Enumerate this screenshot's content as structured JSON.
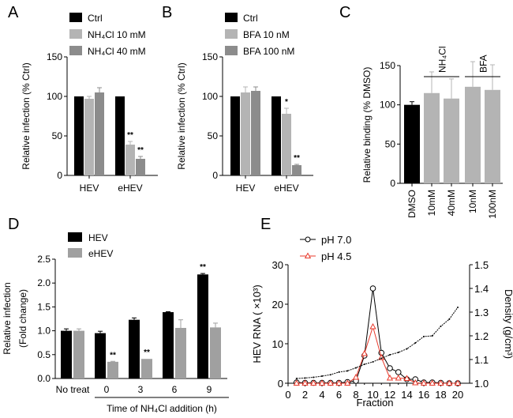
{
  "panel_labels": [
    "A",
    "B",
    "C",
    "D",
    "E"
  ],
  "chart_data": [
    {
      "id": "A",
      "type": "bar",
      "ylabel": "Relative infection (% Ctrl)",
      "ylim": [
        0,
        150
      ],
      "yticks": [
        "0",
        "50",
        "100",
        "150"
      ],
      "ytick_values": [
        0,
        50,
        100,
        150
      ],
      "categories": [
        "HEV",
        "eHEV"
      ],
      "series": [
        {
          "name": "Ctrl",
          "color": "#000000",
          "values": [
            100,
            100
          ],
          "errors": [
            0,
            0
          ],
          "sig": [
            "",
            ""
          ]
        },
        {
          "name": "NH₄Cl 10 mM",
          "color": "#b4b4b4",
          "values": [
            97,
            39
          ],
          "errors": [
            3,
            4
          ],
          "sig": [
            "",
            "**"
          ]
        },
        {
          "name": "NH₄Cl 40 mM",
          "color": "#8c8c8c",
          "values": [
            105,
            21
          ],
          "errors": [
            6,
            3
          ],
          "sig": [
            "",
            "**"
          ]
        }
      ]
    },
    {
      "id": "B",
      "type": "bar",
      "ylabel": "Relative infection (% Ctrl)",
      "ylim": [
        0,
        150
      ],
      "yticks": [
        "0",
        "50",
        "100",
        "150"
      ],
      "ytick_values": [
        0,
        50,
        100,
        150
      ],
      "categories": [
        "HEV",
        "eHEV"
      ],
      "series": [
        {
          "name": "Ctrl",
          "color": "#000000",
          "values": [
            100,
            100
          ],
          "errors": [
            0,
            0
          ],
          "sig": [
            "",
            ""
          ]
        },
        {
          "name": "BFA 10 nM",
          "color": "#b4b4b4",
          "values": [
            105,
            78
          ],
          "errors": [
            7,
            7
          ],
          "sig": [
            "",
            "*"
          ]
        },
        {
          "name": "BFA 100 nM",
          "color": "#8c8c8c",
          "values": [
            107,
            13
          ],
          "errors": [
            5,
            1
          ],
          "sig": [
            "",
            "**"
          ]
        }
      ]
    },
    {
      "id": "C",
      "type": "bar",
      "ylabel": "Relative binding (% DMSO)",
      "ylim": [
        0,
        150
      ],
      "yticks": [
        "0",
        "50",
        "100",
        "150"
      ],
      "ytick_values": [
        0,
        50,
        100,
        150
      ],
      "categories": [
        "DMSO",
        "10mM",
        "40mM",
        "10nM",
        "100nM"
      ],
      "values": [
        100,
        115,
        108,
        123,
        119
      ],
      "errors": [
        4,
        27,
        25,
        32,
        32
      ],
      "colors": [
        "#000000",
        "#b4b4b4",
        "#b4b4b4",
        "#b4b4b4",
        "#b4b4b4"
      ],
      "groups": [
        {
          "label": "NH₄Cl",
          "members": [
            1,
            2
          ]
        },
        {
          "label": "BFA",
          "members": [
            3,
            4
          ]
        }
      ]
    },
    {
      "id": "D",
      "type": "bar",
      "ylabel": [
        "Relative infection",
        "(Fold change)"
      ],
      "ylim": [
        0,
        2.5
      ],
      "yticks": [
        "0.0",
        "0.5",
        "1.0",
        "1.5",
        "2.0",
        "2.5"
      ],
      "ytick_values": [
        0,
        0.5,
        1,
        1.5,
        2,
        2.5
      ],
      "categories": [
        "No treat",
        "0",
        "3",
        "6",
        "9"
      ],
      "xlabel": "Time of NH₄Cl addition (h)",
      "series": [
        {
          "name": "HEV",
          "color": "#000000",
          "values": [
            1.0,
            0.95,
            1.23,
            1.39,
            2.18
          ],
          "errors": [
            0.04,
            0.04,
            0.04,
            0.01,
            0.02
          ],
          "sig": [
            "",
            "",
            "",
            "",
            "**"
          ]
        },
        {
          "name": "eHEV",
          "color": "#a0a0a0",
          "values": [
            1.0,
            0.35,
            0.41,
            1.06,
            1.07
          ],
          "errors": [
            0.04,
            0.01,
            0.0,
            0.17,
            0.09
          ],
          "sig": [
            "",
            "**",
            "**",
            "",
            ""
          ]
        }
      ]
    },
    {
      "id": "E",
      "type": "line",
      "xlabel": "Fraction",
      "ylabel": "HEV RNA ( ×10³)",
      "y2label": "Density (g/cm³)",
      "xlim": [
        0,
        20
      ],
      "xticks": [
        "0",
        "2",
        "4",
        "6",
        "8",
        "10",
        "12",
        "14",
        "16",
        "18",
        "20"
      ],
      "xtick_values": [
        0,
        2,
        4,
        6,
        8,
        10,
        12,
        14,
        16,
        18,
        20
      ],
      "ylim": [
        0,
        30
      ],
      "yticks": [
        "0",
        "10",
        "20",
        "30"
      ],
      "ytick_values": [
        0,
        10,
        20,
        30
      ],
      "y2lim": [
        1.0,
        1.5
      ],
      "y2ticks": [
        "1.0",
        "1.1",
        "1.2",
        "1.3",
        "1.4",
        "1.5"
      ],
      "y2tick_values": [
        1.0,
        1.1,
        1.2,
        1.3,
        1.4,
        1.5
      ],
      "x": [
        1,
        2,
        3,
        4,
        5,
        6,
        7,
        8,
        9,
        10,
        11,
        12,
        13,
        14,
        15,
        16,
        17,
        18,
        19,
        20
      ],
      "series": [
        {
          "name": "pH 7.0",
          "color": "#000000",
          "marker": "circle",
          "values": [
            0.2,
            0.1,
            0.1,
            0.1,
            0.1,
            0.1,
            0.3,
            0.6,
            7.0,
            24.0,
            7.7,
            3.8,
            2.8,
            1.0,
            1.0,
            0.2,
            0.2,
            0.1,
            0.0,
            0.0
          ]
        },
        {
          "name": "pH 4.5",
          "color": "#e8392b",
          "marker": "triangle",
          "values": [
            0,
            0,
            0,
            0,
            0,
            0,
            0,
            1.5,
            7.5,
            14.3,
            6.5,
            1.3,
            1.3,
            1.2,
            0.1,
            0,
            0,
            0,
            0,
            0
          ]
        },
        {
          "name": "Density",
          "axis": "y2",
          "color": "#000000",
          "marker": "dot",
          "values": [
            1.02,
            1.022,
            1.025,
            1.03,
            1.036,
            1.047,
            1.052,
            1.065,
            1.08,
            1.09,
            1.105,
            1.12,
            1.13,
            1.145,
            1.17,
            1.197,
            1.2,
            1.24,
            1.27,
            1.32
          ]
        }
      ]
    }
  ]
}
